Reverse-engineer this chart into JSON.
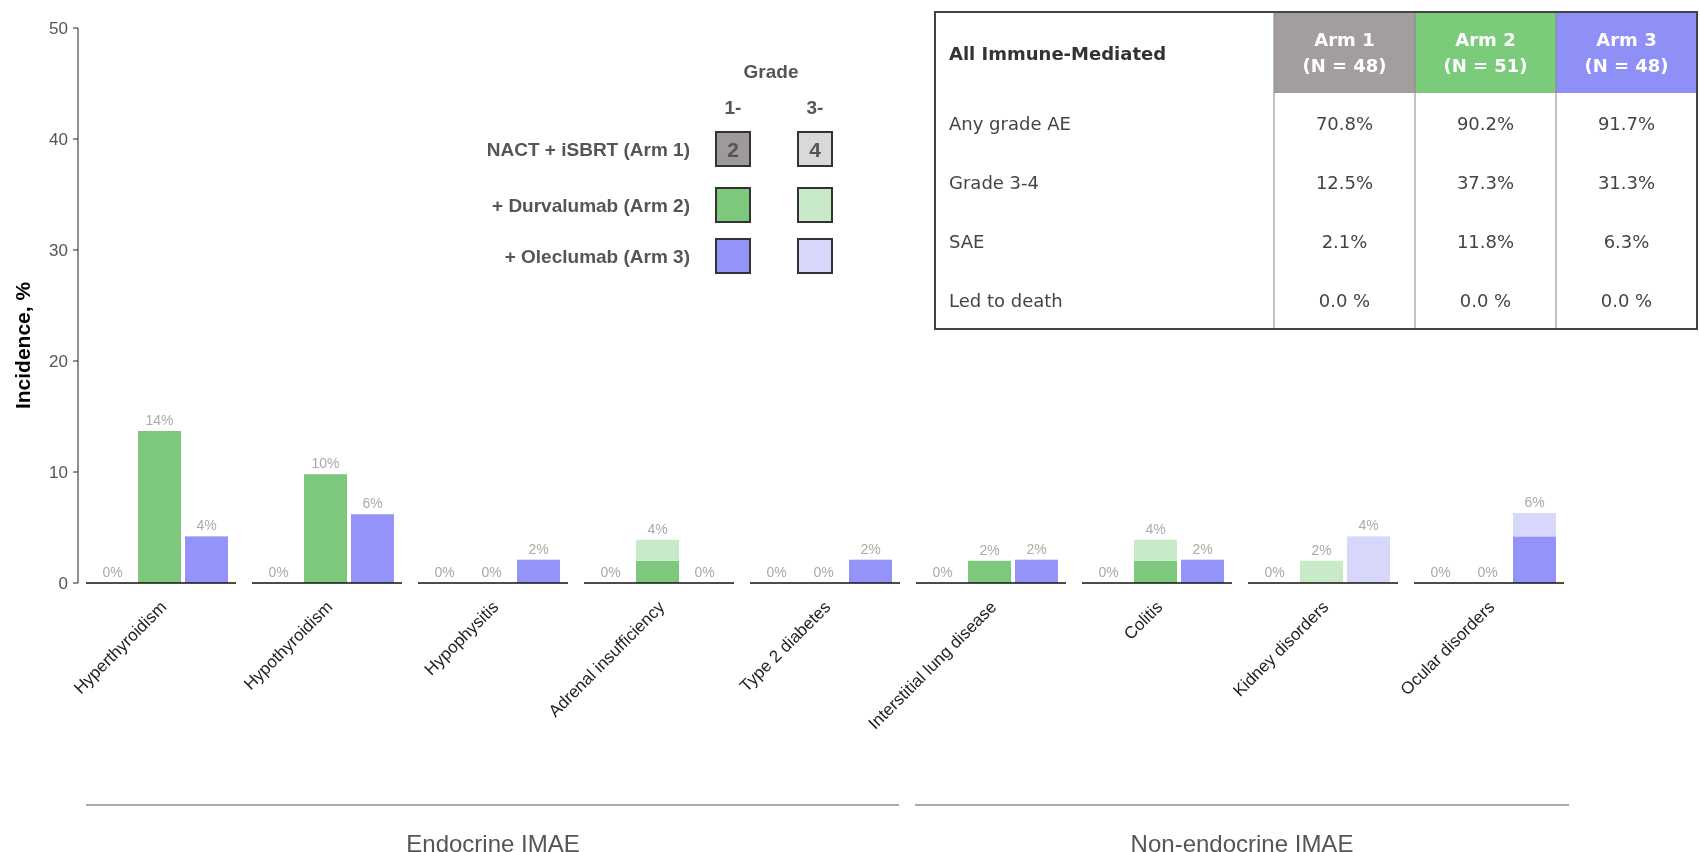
{
  "chart_data": [
    {
      "type": "bar",
      "stacked": true,
      "ylabel": "Incidence, %",
      "ylim": [
        0,
        50
      ],
      "yticks": [
        0,
        10,
        20,
        30,
        40,
        50
      ],
      "legend": "top",
      "legend_title": "Grade",
      "categories": [
        null,
        "Hyperthyroidism",
        null,
        null,
        "Hypothyroidism",
        null,
        null,
        "Hypophysitis",
        null,
        null,
        "Adrenal insufficiency",
        null,
        null,
        "Type 2 diabetes",
        null,
        null,
        "Interstitial lung disease",
        null,
        null,
        "Colitis",
        null,
        null,
        "Kidney disorders",
        null,
        null,
        "Ocular disorders",
        null
      ],
      "series": [
        {
          "name": "NACT + iSBRT (Arm 1)",
          "color": "#9e9a9a",
          "values": [
            0,
            null,
            null,
            0,
            null,
            null,
            0,
            null,
            null,
            0,
            null,
            null,
            0,
            null,
            null,
            0,
            null,
            null,
            0,
            null,
            null,
            0,
            null,
            null,
            0,
            null,
            null
          ]
        },
        {
          "name": "+ Durvalumab (Arm 2)",
          "color": "#7dc87d",
          "values": [
            null,
            13.7,
            null,
            null,
            9.8,
            null,
            null,
            0,
            null,
            null,
            2.0,
            null,
            null,
            0,
            null,
            null,
            2.0,
            null,
            null,
            2.0,
            null,
            null,
            0,
            null,
            null,
            0,
            null
          ]
        },
        {
          "name": "+ Oleclumab (Arm 3)",
          "color": "#9393fa",
          "values": [
            null,
            null,
            4.2,
            null,
            null,
            6.2,
            null,
            null,
            2.1,
            null,
            null,
            0,
            null,
            null,
            2.1,
            null,
            null,
            2.1,
            null,
            null,
            2.1,
            null,
            null,
            0,
            null,
            null,
            4.2
          ]
        },
        {
          "color": "#d9d9d9",
          "values": [
            0,
            null,
            null,
            0,
            null,
            null,
            0,
            null,
            null,
            0,
            null,
            null,
            0,
            null,
            null,
            0,
            null,
            null,
            0,
            null,
            null,
            0,
            null,
            null,
            0,
            null,
            null
          ]
        },
        {
          "color": "#c9eac9",
          "values": [
            null,
            0,
            null,
            null,
            0,
            null,
            null,
            0,
            null,
            null,
            1.9,
            null,
            null,
            0,
            null,
            null,
            0,
            null,
            null,
            1.9,
            null,
            null,
            2.0,
            null,
            null,
            0,
            null
          ]
        },
        {
          "color": "#d7d7fc",
          "values": [
            null,
            null,
            0,
            null,
            null,
            0,
            null,
            null,
            0,
            null,
            null,
            0,
            null,
            null,
            0,
            null,
            null,
            0,
            null,
            null,
            0,
            null,
            null,
            4.2,
            null,
            null,
            2.1
          ]
        }
      ],
      "totals": [
        "0%",
        "14%",
        "4%",
        "0%",
        "10%",
        "6%",
        "0%",
        "0%",
        "2%",
        "0%",
        "4%",
        "0%",
        "0%",
        "0%",
        "2%",
        "0%",
        "2%",
        "2%",
        "0%",
        "4%",
        "2%",
        "0%",
        "2%",
        "4%",
        "0%",
        "0%",
        "6%"
      ],
      "annotations": [
        "1-",
        "2",
        "3-",
        "4",
        "Endocrine IMAE",
        "Non-endocrine IMAE"
      ]
    },
    {
      "type": "other",
      "title": "All Immune-Mediated",
      "categories": [
        "Arm 1\n(N = 48)",
        "Arm 2\n(N = 51)",
        "Arm 3\n(N = 48)"
      ],
      "colors": [
        "#a39d9d",
        "#7acb7a",
        "#8f8ff8"
      ],
      "y_categories": [
        "Any grade AE",
        "Grade 3-4",
        "SAE",
        "Led to death"
      ],
      "cell_labels": [
        [
          "70.8%",
          "90.2%",
          "91.7%"
        ],
        [
          "12.5%",
          "37.3%",
          "31.3%"
        ],
        [
          "2.1%",
          "11.8%",
          "6.3%"
        ],
        [
          "0.0 %",
          "0.0 %",
          "0.0 %"
        ]
      ]
    }
  ]
}
